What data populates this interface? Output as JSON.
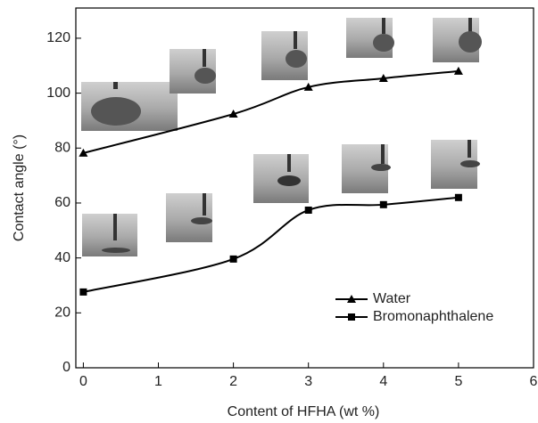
{
  "chart_data": {
    "type": "line",
    "x_label": "Content of HFHA (wt %)",
    "y_label": "Contact angle (°)",
    "x": [
      0,
      2,
      3,
      4,
      5
    ],
    "series": [
      {
        "name": "Water",
        "color": "#000000",
        "marker": "triangle",
        "values": [
          78.2,
          92.4,
          102.2,
          105.4,
          108
        ]
      },
      {
        "name": "Bromonaphthalene",
        "color": "#000000",
        "marker": "square",
        "values": [
          27.6,
          39.6,
          57.4,
          59.4,
          62
        ]
      }
    ],
    "xlim": [
      -0.1,
      6
    ],
    "xticks": [
      0,
      1,
      2,
      3,
      4,
      5,
      6
    ],
    "ylim": [
      0,
      131
    ],
    "yticks": [
      0,
      20,
      40,
      60,
      80,
      100,
      120
    ],
    "legend": "lower right"
  }
}
